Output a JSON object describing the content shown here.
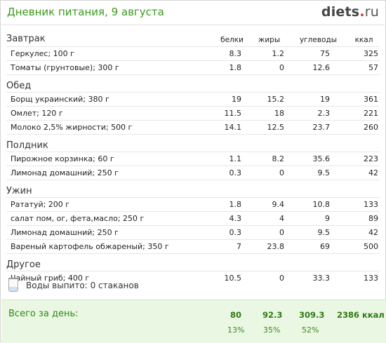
{
  "header": {
    "title": "Дневник питания, 9 августа",
    "logo_main": "diets",
    "logo_dot": ".",
    "logo_tld": "ru"
  },
  "columns": {
    "protein": "белки",
    "fat": "жиры",
    "carbs": "углеводы",
    "kcal": "ккал"
  },
  "meals": [
    {
      "name": "Завтрак",
      "items": [
        {
          "name": "Геркулес; 100 г",
          "protein": "8.3",
          "fat": "1.2",
          "carbs": "75",
          "kcal": "325"
        },
        {
          "name": "Томаты (грунтовые); 300 г",
          "protein": "1.8",
          "fat": "0",
          "carbs": "12.6",
          "kcal": "57"
        }
      ]
    },
    {
      "name": "Обед",
      "items": [
        {
          "name": "Борщ украинский; 380 г",
          "protein": "19",
          "fat": "15.2",
          "carbs": "19",
          "kcal": "361"
        },
        {
          "name": "Омлет; 120 г",
          "protein": "11.5",
          "fat": "18",
          "carbs": "2.3",
          "kcal": "221"
        },
        {
          "name": "Молоко 2,5% жирности; 500 г",
          "protein": "14.1",
          "fat": "12.5",
          "carbs": "23.7",
          "kcal": "260"
        }
      ]
    },
    {
      "name": "Полдник",
      "items": [
        {
          "name": "Пирожное корзинка; 60 г",
          "protein": "1.1",
          "fat": "8.2",
          "carbs": "35.6",
          "kcal": "223"
        },
        {
          "name": "Лимонад домашний; 250 г",
          "protein": "0.3",
          "fat": "0",
          "carbs": "9.5",
          "kcal": "42"
        }
      ]
    },
    {
      "name": "Ужин",
      "items": [
        {
          "name": "Рататуй; 200 г",
          "protein": "1.8",
          "fat": "9.4",
          "carbs": "10.8",
          "kcal": "133"
        },
        {
          "name": "салат пом, ог, фета,масло; 250 г",
          "protein": "4.3",
          "fat": "4",
          "carbs": "9",
          "kcal": "89"
        },
        {
          "name": "Лимонад домашний; 250 г",
          "protein": "0.3",
          "fat": "0",
          "carbs": "9.5",
          "kcal": "42"
        },
        {
          "name": "Вареный картофель обжареный; 350 г",
          "protein": "7",
          "fat": "23.8",
          "carbs": "69",
          "kcal": "500"
        }
      ]
    },
    {
      "name": "Другое",
      "items": [
        {
          "name": "Чайный гриб; 400 г",
          "protein": "10.5",
          "fat": "0",
          "carbs": "33.3",
          "kcal": "133"
        }
      ]
    }
  ],
  "water": {
    "icon": "glass-icon",
    "label": "Воды выпито:",
    "value": "0 стаканов"
  },
  "totals": {
    "label": "Всего за день:",
    "protein": "80",
    "fat": "92.3",
    "carbs": "309.3",
    "kcal": "2386 ккал",
    "protein_pct": "13%",
    "fat_pct": "35%",
    "carbs_pct": "52%"
  },
  "colors": {
    "accent_green": "#3a9a1c",
    "logo_dot_red": "#d9331b",
    "totals_bg": "#eaf7e3"
  }
}
